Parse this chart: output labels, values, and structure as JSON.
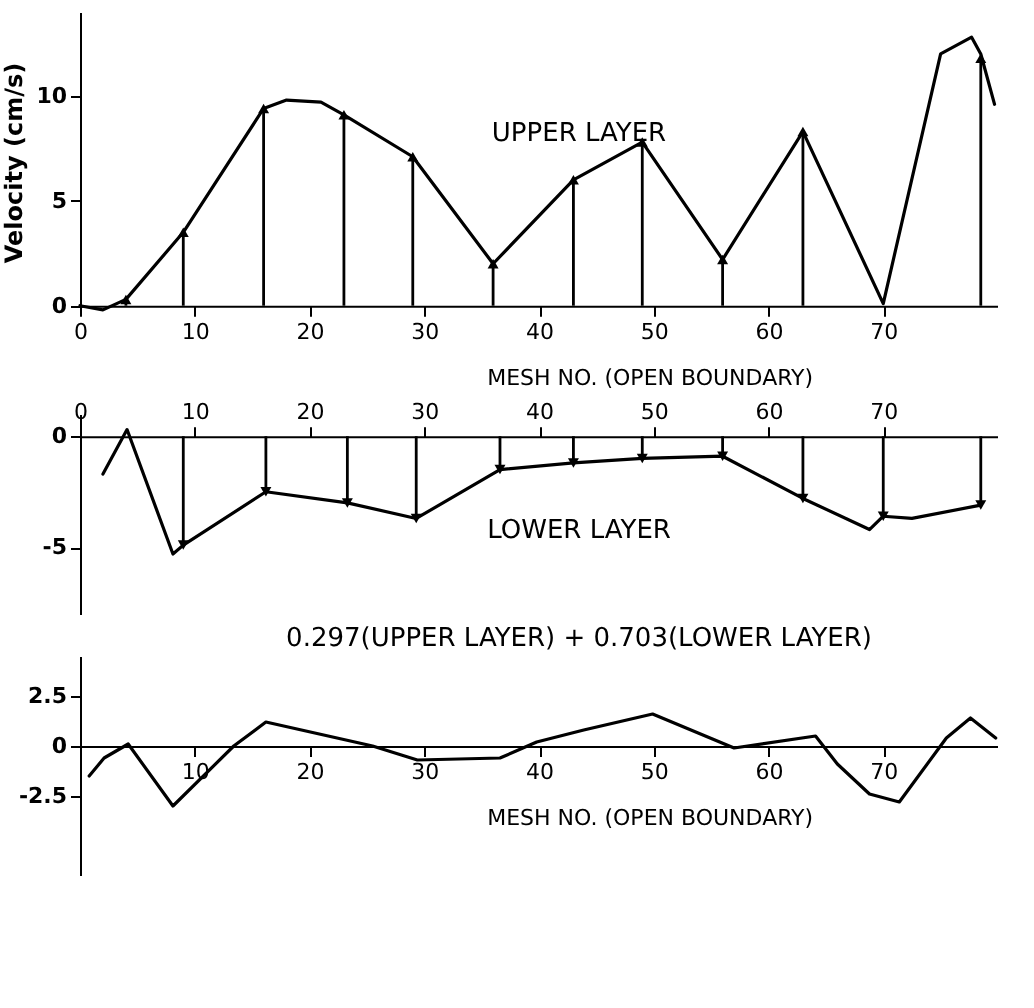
{
  "chart_data": [
    {
      "type": "line",
      "title": "UPPER LAYER",
      "ylabel": "Velocity (cm/s)",
      "xlabel": "MESH NO. (OPEN BOUNDARY)",
      "xlim": [
        0,
        80
      ],
      "xticks": [
        0,
        10,
        20,
        30,
        40,
        50,
        60,
        70
      ],
      "ylim": [
        -0.3,
        14
      ],
      "yticks": [
        0,
        5,
        10
      ],
      "grid": false,
      "series": [
        {
          "color": "#000000",
          "x": [
            0,
            2,
            4,
            9,
            16,
            18,
            21,
            23,
            29,
            36,
            43,
            49,
            56,
            63,
            70,
            75,
            77.7,
            78.5,
            79.7
          ],
          "values": [
            0,
            -0.2,
            0.3,
            3.5,
            9.4,
            9.8,
            9.7,
            9.1,
            7.1,
            2.0,
            6.0,
            7.8,
            2.2,
            8.3,
            0.1,
            12.0,
            12.8,
            12.0,
            9.6
          ]
        },
        {
          "type": "lollipop",
          "marker": "triangle",
          "color": "#000000",
          "x": [
            4,
            9,
            16,
            23,
            29,
            36,
            43,
            49,
            56,
            63,
            78.5
          ],
          "values": [
            0.3,
            3.5,
            9.4,
            9.1,
            7.1,
            2.0,
            6.0,
            7.8,
            2.2,
            8.3,
            11.8
          ]
        }
      ]
    },
    {
      "type": "line",
      "title": "LOWER LAYER",
      "xlim": [
        0,
        80
      ],
      "xticks": [
        0,
        10,
        20,
        30,
        40,
        50,
        60,
        70
      ],
      "ylim": [
        -8,
        1
      ],
      "yticks": [
        0,
        -5
      ],
      "grid": false,
      "series": [
        {
          "color": "#000000",
          "x": [
            2,
            4.1,
            8.1,
            9,
            16.2,
            23.3,
            29.3,
            36.6,
            43,
            49,
            56,
            63,
            68.8,
            70,
            72.5,
            78.5
          ],
          "values": [
            -1.7,
            0.3,
            -5.3,
            -4.9,
            -2.5,
            -3.0,
            -3.7,
            -1.5,
            -1.2,
            -1.0,
            -0.9,
            -2.8,
            -4.2,
            -3.6,
            -3.7,
            -3.1
          ]
        },
        {
          "type": "lollipop",
          "marker": "triangle",
          "color": "#000000",
          "x": [
            9,
            16.2,
            23.3,
            29.3,
            36.6,
            43,
            49,
            56,
            63,
            70,
            78.5
          ],
          "values": [
            -4.9,
            -2.5,
            -3.0,
            -3.7,
            -1.5,
            -1.2,
            -1.0,
            -0.9,
            -2.8,
            -3.6,
            -3.1
          ]
        }
      ]
    },
    {
      "type": "line",
      "title": "0.297(UPPER LAYER) + 0.703(LOWER LAYER)",
      "xlabel": "MESH NO. (OPEN BOUNDARY)",
      "xlim": [
        0,
        80
      ],
      "xticks": [
        10,
        20,
        30,
        40,
        50,
        60,
        70
      ],
      "ylim": [
        -6.5,
        4.5
      ],
      "yticks": [
        2.5,
        0,
        -2.5
      ],
      "grid": false,
      "series": [
        {
          "color": "#000000",
          "x": [
            0.8,
            2.1,
            4.2,
            8.1,
            13.4,
            16.2,
            25.5,
            29.4,
            36.6,
            39.8,
            43.9,
            49.9,
            57,
            64.1,
            66,
            68.8,
            71.4,
            75.5,
            77.6,
            79.8
          ],
          "values": [
            -1.5,
            -0.6,
            0.1,
            -3.0,
            0,
            1.2,
            0,
            -0.7,
            -0.6,
            0.2,
            0.8,
            1.6,
            -0.1,
            0.5,
            -0.9,
            -2.4,
            -2.8,
            0.4,
            1.4,
            0.4
          ]
        }
      ]
    }
  ]
}
